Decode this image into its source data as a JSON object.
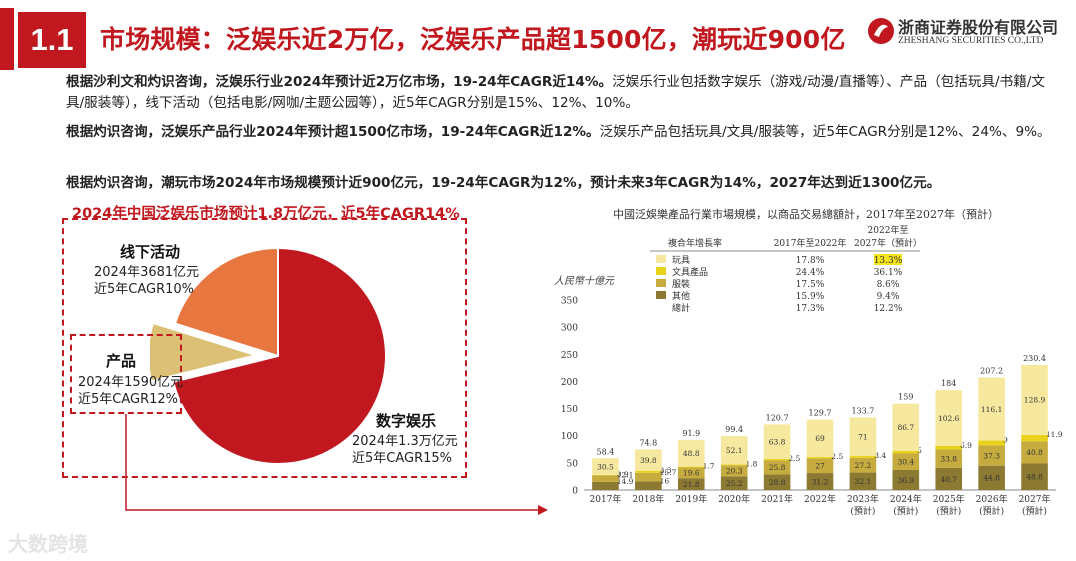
{
  "header": {
    "section_number": "1.1",
    "title": "市场规模：泛娱乐近2万亿，泛娱乐产品超1500亿，潮玩近900亿",
    "logo_cn": "浙商证券股份有限公司",
    "logo_en": "ZHESHANG SECURITIES CO.,LTD"
  },
  "paragraphs": [
    {
      "lead": "根据沙利文和灼识咨询，泛娱乐行业2024年预计近2万亿市场，19-24年CAGR近14%。",
      "rest": "泛娱乐行业包括数字娱乐（游戏/动漫/直播等）、产品（包括玩具/书籍/文具/服装等），线下活动（包括电影/网咖/主题公园等），近5年CAGR分别是15%、12%、10%。"
    },
    {
      "lead": "根据灼识咨询，泛娱乐产品行业2024年预计超1500亿市场，19-24年CAGR近12%。",
      "rest": "泛娱乐产品包括玩具/文具/服装等，近5年CAGR分别是12%、24%、9%。"
    },
    {
      "lead": "根据灼识咨询，潮玩市场2024年市场规模预计近900亿元，19-24年CAGR为12%，预计未来3年CAGR为14%，2027年达到近1300亿元。",
      "rest": ""
    }
  ],
  "pie": {
    "headline": "2024年中国泛娱乐市场预计1.8万亿元，近5年CAGR14%",
    "segments": [
      {
        "name": "数字娱乐",
        "line1": "2024年1.3万亿元",
        "line2": "近5年CAGR15%",
        "value": 13000,
        "color": "#c0181e"
      },
      {
        "name": "产品",
        "line1": "2024年1590亿元",
        "line2": "近5年CAGR12%",
        "value": 1590,
        "color": "#dcc076"
      },
      {
        "name": "线下活动",
        "line1": "2024年3681亿元",
        "line2": "近5年CAGR10%",
        "value": 3681,
        "color": "#e8763f"
      }
    ]
  },
  "chart_data": {
    "type": "bar",
    "stacked": true,
    "title": "中國泛娛樂產品行業市場規模，以商品交易總額計，2017年至2027年（預計）",
    "ylabel": "人民幣十億元",
    "ylim": [
      0,
      350
    ],
    "yticks": [
      0,
      50,
      100,
      150,
      200,
      250,
      300,
      350
    ],
    "categories": [
      "2017年",
      "2018年",
      "2019年",
      "2020年",
      "2021年",
      "2022年",
      "2023年(預計)",
      "2024年(預計)",
      "2025年(預計)",
      "2026年(預計)",
      "2027年(預計)"
    ],
    "series": [
      {
        "name": "其他",
        "color": "#8c7a33",
        "values": [
          14.9,
          16.0,
          21.8,
          25.2,
          28.8,
          31.2,
          32.1,
          36.9,
          40.7,
          44.8,
          48.8
        ]
      },
      {
        "name": "服裝",
        "color": "#c6ab3e",
        "values": [
          12.1,
          15.7,
          19.6,
          20.3,
          25.8,
          27.0,
          27.2,
          30.4,
          33.8,
          37.3,
          40.8
        ]
      },
      {
        "name": "文具產品",
        "color": "#e8d21c",
        "values": [
          0.9,
          3.3,
          1.7,
          1.8,
          2.5,
          2.5,
          3.4,
          5.0,
          6.9,
          9.0,
          11.9
        ]
      },
      {
        "name": "玩具",
        "color": "#f6e99f",
        "values": [
          30.5,
          39.8,
          48.8,
          52.1,
          63.8,
          69.0,
          71.0,
          86.7,
          102.6,
          116.1,
          128.9
        ]
      }
    ],
    "totals": [
      58.4,
      74.8,
      91.9,
      99.4,
      120.7,
      129.7,
      133.7,
      159.0,
      184.0,
      207.2,
      230.4
    ],
    "legend_table": {
      "col0": "複合年增長率",
      "col1": "2017年至2022年",
      "col2_line1": "2022年至",
      "col2_line2": "2027年（預計）",
      "rows": [
        {
          "name": "玩具",
          "v1": "17.8%",
          "v2": "13.3%",
          "color": "#f6e99f",
          "highlight": true
        },
        {
          "name": "文具產品",
          "v1": "24.4%",
          "v2": "36.1%",
          "color": "#e8d21c",
          "highlight": false
        },
        {
          "name": "服裝",
          "v1": "17.5%",
          "v2": "8.6%",
          "color": "#c6ab3e",
          "highlight": false
        },
        {
          "name": "其他",
          "v1": "15.9%",
          "v2": "9.4%",
          "color": "#8c7a33",
          "highlight": false
        },
        {
          "name": "總計",
          "v1": "17.3%",
          "v2": "12.2%",
          "color": "",
          "highlight": false
        }
      ]
    }
  },
  "watermark": "大数跨境"
}
